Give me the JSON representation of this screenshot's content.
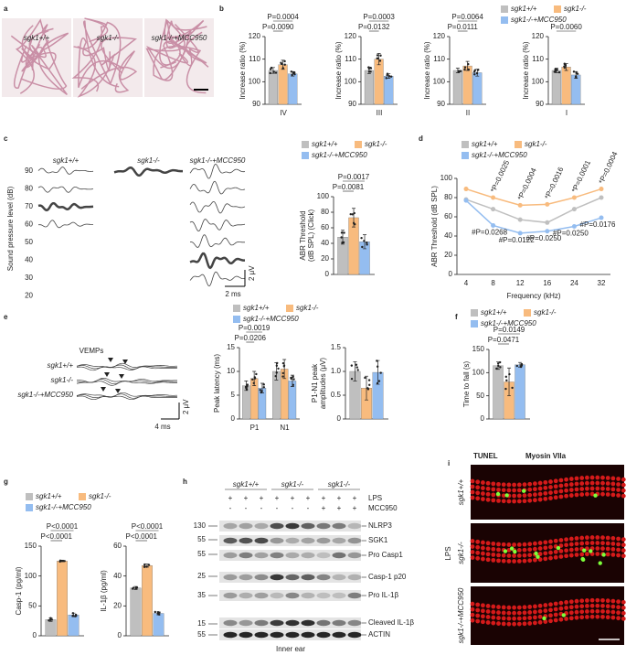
{
  "panel_labels": [
    "a",
    "b",
    "c",
    "d",
    "e",
    "f",
    "g",
    "h",
    "i"
  ],
  "panel_a": {
    "labels": [
      "sgk1+/+",
      "sgk1-/-",
      "sgk1-/-+MCC950"
    ]
  },
  "panel_c_traces": {
    "titles": [
      "sgk1+/+",
      "sgk1-/-",
      "sgk1-/-+MCC950"
    ],
    "ylabel": "Sound pressure level (dB)",
    "levels": [
      90,
      80,
      70,
      60,
      50,
      40,
      30,
      20
    ],
    "scale_y": "2 μV",
    "scale_x": "2 ms"
  },
  "panel_e_traces": {
    "title": "VEMPs",
    "labels": [
      "sgk1+/+",
      "sgk1-/-",
      "sgk1-/-+MCC950"
    ],
    "scale_y": "2 μV",
    "scale_x": "4 ms"
  },
  "panel_h": {
    "groups": [
      "sgk1+/+",
      "sgk1-/-",
      "sgk1-/-"
    ],
    "lps_label": "LPS",
    "mcc_label": "MCC950",
    "lps": [
      "+",
      "+",
      "+",
      "+",
      "+",
      "+",
      "+",
      "+",
      "+"
    ],
    "mcc950": [
      "-",
      "-",
      "-",
      "-",
      "-",
      "-",
      "+",
      "+",
      "+"
    ],
    "markers": [
      "130",
      "55",
      "55",
      "25",
      "35",
      "15",
      "55"
    ],
    "proteins": [
      "NLRP3",
      "SGK1",
      "Pro Casp1",
      "Casp-1 p20",
      "Pro IL-1β",
      "Cleaved IL-1β",
      "ACTIN"
    ],
    "tissue": "Inner ear"
  },
  "panel_i": {
    "stain1": "TUNEL",
    "stain2": "Myosin VIIa",
    "treatment": "LPS",
    "labels": [
      "sgk1+/+",
      "sgk1-/-",
      "sgk1-/-+MCC950"
    ]
  },
  "chart_data": [
    {
      "type": "bar",
      "ylabel": "Increase ratio (%)",
      "categories": [
        "IV"
      ],
      "series": [
        {
          "name": "sgk1+/+",
          "color": "#bfbfbf",
          "values": [
            105
          ],
          "errors": [
            1.3
          ]
        },
        {
          "name": "sgk1-/-",
          "color": "#f8bb7e",
          "values": [
            107.5
          ],
          "errors": [
            2
          ]
        },
        {
          "name": "sgk1-/-+MCC950",
          "color": "#94bdf0",
          "values": [
            103.5
          ],
          "errors": [
            1
          ]
        }
      ],
      "ylim": [
        90,
        120
      ],
      "yticks": [
        90,
        100,
        110,
        120
      ],
      "annotations": [
        "P=0.0004",
        "P=0.0090"
      ],
      "legend": false
    },
    {
      "type": "bar",
      "ylabel": "Increase ratio (%)",
      "categories": [
        "III"
      ],
      "series": [
        {
          "name": "sgk1+/+",
          "color": "#bfbfbf",
          "values": [
            105
          ],
          "errors": [
            1.5
          ]
        },
        {
          "name": "sgk1-/-",
          "color": "#f8bb7e",
          "values": [
            110
          ],
          "errors": [
            2.5
          ]
        },
        {
          "name": "sgk1-/-+MCC950",
          "color": "#94bdf0",
          "values": [
            102.5
          ],
          "errors": [
            1
          ]
        }
      ],
      "ylim": [
        90,
        120
      ],
      "yticks": [
        90,
        100,
        110,
        120
      ],
      "annotations": [
        "P=0.0003",
        "P=0.0132"
      ],
      "legend": false
    },
    {
      "type": "bar",
      "ylabel": "Increase ratio (%)",
      "categories": [
        "II"
      ],
      "series": [
        {
          "name": "sgk1+/+",
          "color": "#bfbfbf",
          "values": [
            105
          ],
          "errors": [
            1
          ]
        },
        {
          "name": "sgk1-/-",
          "color": "#f8bb7e",
          "values": [
            107
          ],
          "errors": [
            2
          ]
        },
        {
          "name": "sgk1-/-+MCC950",
          "color": "#94bdf0",
          "values": [
            104
          ],
          "errors": [
            1.5
          ]
        }
      ],
      "ylim": [
        90,
        120
      ],
      "yticks": [
        90,
        100,
        110,
        120
      ],
      "annotations": [
        "P=0.0064",
        "P=0.0111"
      ],
      "legend": false
    },
    {
      "type": "bar",
      "ylabel": "Increase ratio (%)",
      "categories": [
        "I"
      ],
      "series": [
        {
          "name": "sgk1+/+",
          "color": "#bfbfbf",
          "values": [
            105
          ],
          "errors": [
            1
          ]
        },
        {
          "name": "sgk1-/-",
          "color": "#f8bb7e",
          "values": [
            106.5
          ],
          "errors": [
            1.5
          ]
        },
        {
          "name": "sgk1-/-+MCC950",
          "color": "#94bdf0",
          "values": [
            103
          ],
          "errors": [
            1.5
          ]
        }
      ],
      "ylim": [
        90,
        120
      ],
      "yticks": [
        90,
        100,
        110,
        120
      ],
      "annotations": [
        "P=0.0060"
      ],
      "legend": true
    },
    {
      "type": "bar",
      "ylabel": [
        "ABR Threshold",
        "(dB SPL) (Click)"
      ],
      "categories": [
        null
      ],
      "series": [
        {
          "name": "sgk1+/+",
          "color": "#bfbfbf",
          "values": [
            48
          ],
          "errors": [
            9
          ]
        },
        {
          "name": "sgk1-/-",
          "color": "#f8bb7e",
          "values": [
            73
          ],
          "errors": [
            12
          ]
        },
        {
          "name": "sgk1-/-+MCC950",
          "color": "#94bdf0",
          "values": [
            42
          ],
          "errors": [
            9
          ]
        }
      ],
      "ylim": [
        0,
        100
      ],
      "yticks": [
        0,
        20,
        40,
        60,
        80,
        100
      ],
      "annotations": [
        "P=0.0017",
        "P=0.0081"
      ],
      "legend": true
    },
    {
      "type": "line",
      "ylabel": "ABR Threshold (dB SPL)",
      "xlabel": "Frequency (kHz)",
      "categories": [
        "4",
        "8",
        "12",
        "16",
        "24",
        "32"
      ],
      "series": [
        {
          "name": "sgk1+/+",
          "color": "#bfbfbf",
          "values": [
            78,
            68,
            57,
            54,
            68,
            80
          ]
        },
        {
          "name": "sgk1-/-",
          "color": "#f8bb7e",
          "values": [
            89,
            80,
            72,
            73,
            80,
            89
          ]
        },
        {
          "name": "sgk1-/-+MCC950",
          "color": "#94bdf0",
          "values": [
            77,
            51,
            43,
            45,
            50,
            59
          ]
        }
      ],
      "ylim": [
        0,
        100
      ],
      "yticks": [
        0,
        20,
        40,
        60,
        80,
        100
      ],
      "annotations_top": [
        null,
        "*P=0.0025",
        "*P=0.0004",
        "*P=0.0016",
        "*P=0.0001",
        "*P=0.0004"
      ],
      "annotations_bottom": [
        null,
        "#P=0.0268",
        "#P=0.0122",
        "#P=0.0250",
        "#P=0.0250",
        "#P=0.0176"
      ],
      "legend": true
    },
    {
      "type": "bar",
      "ylabel": "Peak latency (ms)",
      "categories": [
        "P1",
        "N1"
      ],
      "series": [
        {
          "name": "sgk1+/+",
          "color": "#bfbfbf",
          "values": [
            7,
            10
          ],
          "errors": [
            1,
            1.8
          ]
        },
        {
          "name": "sgk1-/-",
          "color": "#f8bb7e",
          "values": [
            8.5,
            10.5
          ],
          "errors": [
            1.5,
            2
          ]
        },
        {
          "name": "sgk1-/-+MCC950",
          "color": "#94bdf0",
          "values": [
            6.5,
            8
          ],
          "errors": [
            1,
            1.2
          ]
        }
      ],
      "ylim": [
        0,
        15
      ],
      "yticks": [
        0,
        5,
        10,
        15
      ],
      "annotations": [
        "P=0.0019",
        "P=0.0206"
      ],
      "legend": true
    },
    {
      "type": "bar",
      "ylabel": [
        "P1-N1 peak",
        "amplitudes (μV)"
      ],
      "categories": [
        null
      ],
      "series": [
        {
          "name": "sgk1+/+",
          "color": "#bfbfbf",
          "values": [
            1.0
          ],
          "errors": [
            0.2
          ]
        },
        {
          "name": "sgk1-/-",
          "color": "#f8bb7e",
          "values": [
            0.65
          ],
          "errors": [
            0.25
          ]
        },
        {
          "name": "sgk1-/-+MCC950",
          "color": "#94bdf0",
          "values": [
            0.98
          ],
          "errors": [
            0.25
          ]
        }
      ],
      "ylim": [
        0,
        1.5
      ],
      "yticks": [
        0,
        0.5,
        {
          "value": 1,
          "label": "1.0"
        },
        1.5
      ],
      "annotations": [],
      "legend": false
    },
    {
      "type": "bar",
      "ylabel": "Time to fall (s)",
      "categories": [
        null
      ],
      "series": [
        {
          "name": "sgk1+/+",
          "color": "#bfbfbf",
          "values": [
            115
          ],
          "errors": [
            8
          ]
        },
        {
          "name": "sgk1-/-",
          "color": "#f8bb7e",
          "values": [
            80
          ],
          "errors": [
            30
          ]
        },
        {
          "name": "sgk1-/-+MCC950",
          "color": "#94bdf0",
          "values": [
            117
          ],
          "errors": [
            5
          ]
        }
      ],
      "ylim": [
        0,
        150
      ],
      "yticks": [
        0,
        50,
        100,
        150
      ],
      "annotations": [
        "P=0.0149",
        "P=0.0471"
      ],
      "legend": true
    },
    {
      "type": "bar",
      "ylabel": "Casp-1 (pg/ml)",
      "categories": [
        null
      ],
      "series": [
        {
          "name": "sgk1+/+",
          "color": "#bfbfbf",
          "values": [
            27
          ],
          "errors": [
            3
          ]
        },
        {
          "name": "sgk1-/-",
          "color": "#f8bb7e",
          "values": [
            125
          ],
          "errors": [
            1
          ]
        },
        {
          "name": "sgk1-/-+MCC950",
          "color": "#94bdf0",
          "values": [
            35
          ],
          "errors": [
            3
          ]
        }
      ],
      "ylim": [
        0,
        150
      ],
      "yticks": [
        0,
        50,
        100,
        150
      ],
      "annotations": [
        "P<0.0001",
        "P<0.0001"
      ],
      "legend": true
    },
    {
      "type": "bar",
      "ylabel": "IL-1β (pg/ml)",
      "categories": [
        null
      ],
      "series": [
        {
          "name": "sgk1+/+",
          "color": "#bfbfbf",
          "values": [
            32
          ],
          "errors": [
            1
          ]
        },
        {
          "name": "sgk1-/-",
          "color": "#f8bb7e",
          "values": [
            47
          ],
          "errors": [
            1
          ]
        },
        {
          "name": "sgk1-/-+MCC950",
          "color": "#94bdf0",
          "values": [
            15
          ],
          "errors": [
            1
          ]
        }
      ],
      "ylim": [
        0,
        60
      ],
      "yticks": [
        0,
        20,
        40,
        60
      ],
      "annotations": [
        "P<0.0001",
        "P<0.0001"
      ],
      "legend": false
    }
  ]
}
